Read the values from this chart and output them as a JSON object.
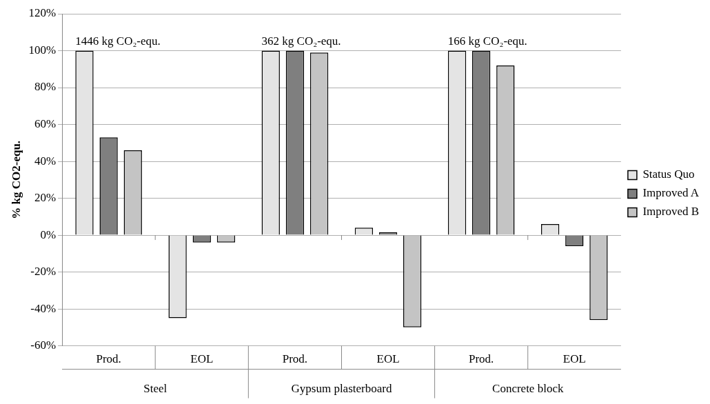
{
  "chart_data": {
    "type": "bar",
    "ylabel": "% kg CO2-equ.",
    "categories": [
      "Prod.",
      "EOL",
      "Prod.",
      "EOL",
      "Prod.",
      "EOL"
    ],
    "series": [
      {
        "name": "Status Quo",
        "color": "#e4e4e4",
        "values": [
          100,
          -45,
          100,
          4,
          100,
          6
        ]
      },
      {
        "name": "Improved A",
        "color": "#7f7f7f",
        "values": [
          53,
          -4,
          100,
          1.5,
          100,
          -6
        ]
      },
      {
        "name": "Improved B",
        "color": "#c4c4c4",
        "values": [
          46,
          -4,
          99,
          -50,
          92,
          -46
        ]
      }
    ],
    "ylim": [
      -60,
      120
    ],
    "yticks": [
      {
        "value": -60,
        "label": "-60%"
      },
      {
        "value": -40,
        "label": "-40%"
      },
      {
        "value": -20,
        "label": "-20%"
      },
      {
        "value": 0,
        "label": "0%"
      },
      {
        "value": 20,
        "label": "20%"
      },
      {
        "value": 40,
        "label": "40%"
      },
      {
        "value": 60,
        "label": "60%"
      },
      {
        "value": 80,
        "label": "80%"
      },
      {
        "value": 100,
        "label": "100%"
      },
      {
        "value": 120,
        "label": "120%"
      }
    ],
    "grid": "y",
    "legend": "right",
    "annotations": [
      "1446 kg CO₂-equ.",
      "362 kg CO₂-equ.",
      "166 kg CO₂-equ.",
      "Steel",
      "Gypsum plasterboard",
      "Concrete block"
    ]
  }
}
